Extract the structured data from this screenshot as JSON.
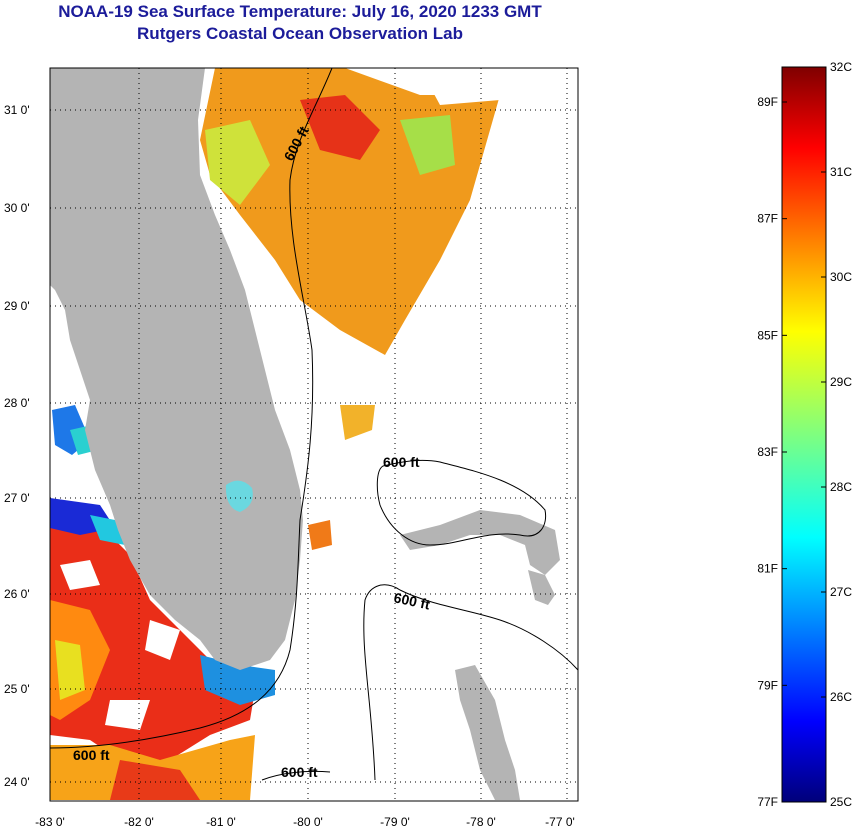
{
  "title": {
    "line1": "NOAA-19 Sea Surface Temperature:  July 16, 2020 1233 GMT",
    "line2": "Rutgers Coastal Ocean Observation Lab"
  },
  "map": {
    "lat_ticks": [
      "31 0'",
      "30 0'",
      "29 0'",
      "28 0'",
      "27 0'",
      "26 0'",
      "25 0'",
      "24 0'"
    ],
    "lon_ticks": [
      "-83 0'",
      "-82 0'",
      "-81 0'",
      "-80 0'",
      "-79 0'",
      "-78 0'",
      "-77 0'"
    ],
    "contour_labels": [
      "600 ft",
      "600 ft",
      "600 ft",
      "600 ft",
      "600 ft"
    ],
    "land_color": "#b4b4b4"
  },
  "colorbar": {
    "min_c": 25,
    "max_c": 32,
    "celsius_labels": [
      "32C",
      "31C",
      "30C",
      "29C",
      "28C",
      "27C",
      "26C",
      "25C"
    ],
    "fahrenheit_labels": [
      "89F",
      "87F",
      "85F",
      "83F",
      "81F",
      "79F",
      "77F"
    ],
    "fahrenheit_values": [
      89,
      87,
      85,
      83,
      81,
      79,
      77
    ]
  }
}
